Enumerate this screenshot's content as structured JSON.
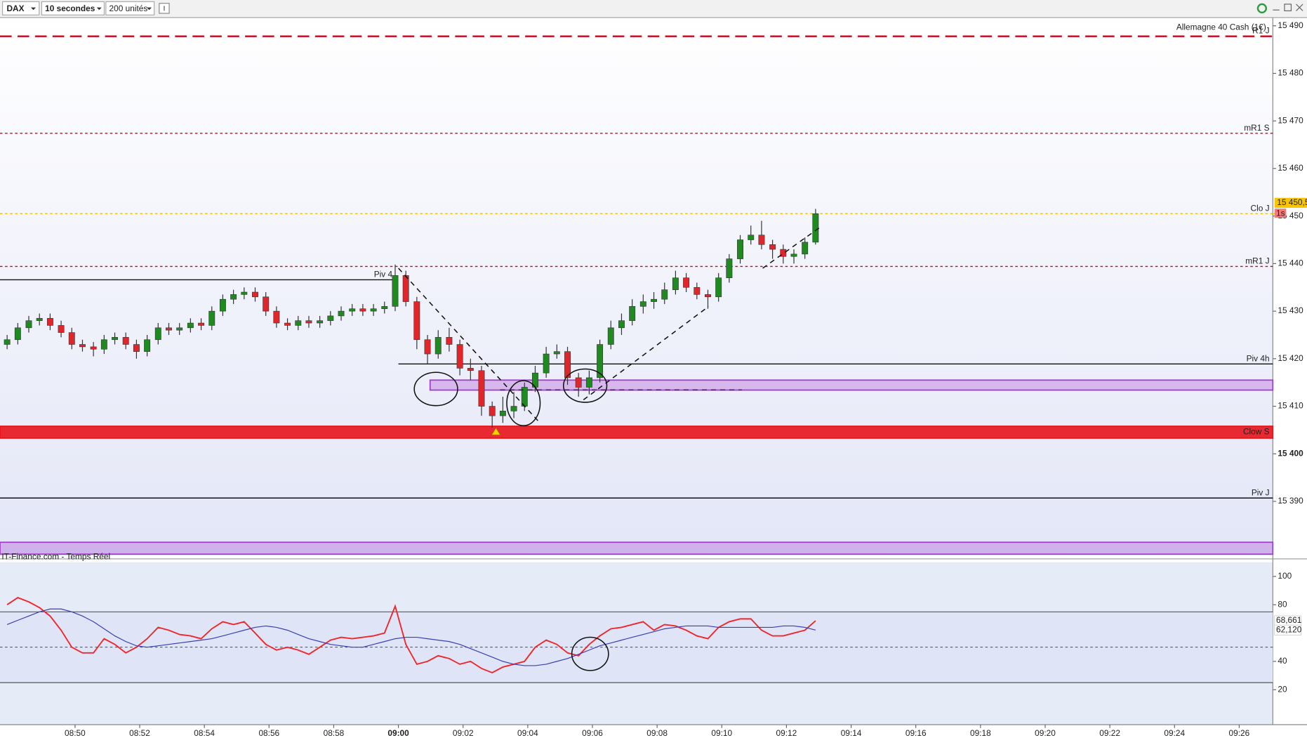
{
  "toolbar": {
    "symbol": "DAX",
    "interval": "10 secondes",
    "units": "200 unités"
  },
  "chart_data": [
    {
      "type": "candlestick",
      "title": "Allemagne 40 Cash (1€)",
      "xlim": [
        47.68,
        87.04
      ],
      "ylim": [
        15378.6,
        15491.75
      ],
      "yticks": [
        {
          "value": 15390,
          "label": "15 390"
        },
        {
          "value": 15400,
          "label": "15 400",
          "bold": true
        },
        {
          "value": 15410,
          "label": "15 410"
        },
        {
          "value": 15420,
          "label": "15 420"
        },
        {
          "value": 15430,
          "label": "15 430"
        },
        {
          "value": 15440,
          "label": "15 440"
        },
        {
          "value": 15450,
          "label": "15 450"
        },
        {
          "value": 15460,
          "label": "15 460"
        },
        {
          "value": 15470,
          "label": "15 470"
        },
        {
          "value": 15480,
          "label": "15 480"
        },
        {
          "value": 15490,
          "label": "15 490"
        }
      ],
      "up_color": "#1f8a1f",
      "down_color": "#e0262b",
      "x": [
        47.9,
        48.23,
        48.57,
        48.9,
        49.23,
        49.57,
        49.9,
        50.23,
        50.57,
        50.9,
        51.23,
        51.57,
        51.9,
        52.23,
        52.57,
        52.9,
        53.23,
        53.57,
        53.9,
        54.23,
        54.57,
        54.9,
        55.23,
        55.57,
        55.9,
        56.23,
        56.57,
        56.9,
        57.23,
        57.57,
        57.9,
        58.23,
        58.57,
        58.9,
        59.23,
        59.57,
        59.9,
        60.23,
        60.57,
        60.9,
        61.23,
        61.57,
        61.9,
        62.23,
        62.57,
        62.9,
        63.23,
        63.57,
        63.9,
        64.23,
        64.57,
        64.9,
        65.23,
        65.57,
        65.9,
        66.23,
        66.57,
        66.9,
        67.23,
        67.57,
        67.9,
        68.23,
        68.57,
        68.9,
        69.23,
        69.57,
        69.9,
        70.23,
        70.57,
        70.9,
        71.23,
        71.57,
        71.9,
        72.23,
        72.57,
        72.9
      ],
      "open": [
        15423,
        15424,
        15426.5,
        15428,
        15428.5,
        15427,
        15425.5,
        15423,
        15422.5,
        15422,
        15424,
        15424.5,
        15423,
        15421.5,
        15424,
        15426.5,
        15426,
        15426.5,
        15427.5,
        15427,
        15430,
        15432.5,
        15433.5,
        15434,
        15433,
        15430,
        15427.5,
        15427,
        15428,
        15427.5,
        15428,
        15429,
        15430,
        15430.5,
        15430,
        15430.5,
        15431,
        15437.5,
        15432,
        15424,
        15421,
        15424.5,
        15423,
        15418,
        15417.5,
        15410,
        15408,
        15409,
        15410,
        15414,
        15417,
        15421,
        15421.5,
        15416,
        15414,
        15416,
        15423,
        15426.5,
        15428,
        15431,
        15432,
        15432.5,
        15434.5,
        15437,
        15435,
        15433.5,
        15433,
        15437,
        15441,
        15445,
        15446,
        15444,
        15443,
        15441.5,
        15442,
        15444.5
      ],
      "high": [
        15425,
        15427.5,
        15429,
        15429.5,
        15429.5,
        15428,
        15426.5,
        15424,
        15423.5,
        15425,
        15425.5,
        15425.5,
        15424,
        15425,
        15427.5,
        15427.5,
        15427.5,
        15428.5,
        15428.5,
        15431,
        15433.5,
        15434.5,
        15435,
        15435,
        15434,
        15431,
        15428.5,
        15429,
        15429,
        15429,
        15430,
        15431,
        15431.5,
        15431.5,
        15431.5,
        15432,
        15439.8,
        15438.5,
        15433,
        15425,
        15426,
        15426.5,
        15424,
        15420,
        15418.5,
        15411,
        15412,
        15413,
        15415,
        15418.5,
        15422.5,
        15423,
        15422.5,
        15417,
        15417.5,
        15424,
        15428,
        15429.5,
        15432.5,
        15433.5,
        15434,
        15436,
        15438.5,
        15438,
        15436,
        15434.5,
        15438,
        15442,
        15446,
        15448,
        15449,
        15445,
        15444,
        15443,
        15445.5,
        15451.5
      ],
      "low": [
        15422,
        15423,
        15425.5,
        15427,
        15426,
        15424.5,
        15422,
        15421.5,
        15420.5,
        15421,
        15423,
        15422,
        15420,
        15420.5,
        15423,
        15425,
        15425,
        15425.5,
        15426,
        15426,
        15429,
        15431.5,
        15432.5,
        15432,
        15429,
        15426.5,
        15426,
        15426,
        15426.5,
        15426.5,
        15427,
        15428,
        15429,
        15429,
        15429,
        15429.5,
        15430,
        15431,
        15422,
        15419,
        15420,
        15421.5,
        15416.5,
        15415.5,
        15408,
        15405.5,
        15406.5,
        15407.5,
        15409,
        15413,
        15416,
        15420,
        15414.5,
        15412,
        15412.5,
        15415,
        15422,
        15425,
        15427,
        15429.5,
        15430.5,
        15431.5,
        15433.5,
        15434,
        15432.5,
        15430.5,
        15432,
        15436,
        15440,
        15444,
        15443,
        15441,
        15440,
        15440,
        15441,
        15444
      ],
      "close": [
        15424,
        15426.5,
        15428,
        15428.5,
        15427,
        15425.5,
        15423,
        15422.5,
        15422,
        15424,
        15424.5,
        15423,
        15421.5,
        15424,
        15426.5,
        15426,
        15426.5,
        15427.5,
        15427,
        15430,
        15432.5,
        15433.5,
        15434,
        15433,
        15430,
        15427.5,
        15427,
        15428,
        15427.5,
        15428,
        15429,
        15430,
        15430.5,
        15430,
        15430.5,
        15431,
        15437.5,
        15432,
        15424,
        15421,
        15424.5,
        15423,
        15418,
        15417.5,
        15410,
        15408,
        15409,
        15410,
        15414,
        15417,
        15421,
        15421.5,
        15416,
        15414,
        15416,
        15423,
        15426.5,
        15428,
        15431,
        15432,
        15432.5,
        15434.5,
        15437,
        15435,
        15433.5,
        15433,
        15437,
        15441,
        15445,
        15446,
        15444,
        15443,
        15441.5,
        15442,
        15444.5,
        15450.5
      ],
      "last_price_label": "15 450,5",
      "countdown": "1s",
      "levels": [
        {
          "label": "R1 J",
          "value": 15487.8,
          "color": "#d0021b",
          "style": "dashed"
        },
        {
          "label": "mR1 S",
          "value": 15467.4,
          "color": "#d0021b",
          "style": "dotted"
        },
        {
          "label": "Clo J",
          "value": 15450.5,
          "color": "#f0c000",
          "style": "dotted"
        },
        {
          "label": "mR1 J",
          "value": 15439.4,
          "color": "#d0021b",
          "style": "dotted"
        },
        {
          "label": "Piv 4",
          "value": 15436.6,
          "color": "#111111",
          "style": "solid",
          "x_to": 59.92
        },
        {
          "label": "Piv 4h",
          "value": 15418.9,
          "color": "#111111",
          "style": "solid",
          "x_from": 60
        },
        {
          "label": "Piv J",
          "value": 15390.7,
          "color": "#111111",
          "style": "solid"
        }
      ],
      "zones": [
        {
          "low": 15413.4,
          "high": 15415.5,
          "x_from": 60.98,
          "color": "#a43cd0",
          "opacity": 0.3
        },
        {
          "low": 15403.3,
          "high": 15405.8,
          "color": "#e8141b",
          "opacity": 0.9,
          "label": "Clow S"
        },
        {
          "low": 15378.9,
          "high": 15381.4,
          "color": "#a43cd0",
          "opacity": 0.3
        }
      ]
    },
    {
      "type": "line",
      "title": "IT-Finance.com - Temps Réel",
      "xlim": [
        47.68,
        87.04
      ],
      "ylim": [
        -4.7,
        110
      ],
      "yticks": [
        20,
        40,
        80,
        100
      ],
      "levels": [
        {
          "value": 75,
          "style": "solid",
          "color": "#333333"
        },
        {
          "value": 50,
          "style": "dotted",
          "color": "#333333"
        },
        {
          "value": 25,
          "style": "solid",
          "color": "#333333"
        }
      ],
      "xticks": [
        {
          "value": 50,
          "label": "08:50"
        },
        {
          "value": 52,
          "label": "08:52"
        },
        {
          "value": 54,
          "label": "08:54"
        },
        {
          "value": 56,
          "label": "08:56"
        },
        {
          "value": 58,
          "label": "08:58"
        },
        {
          "value": 60,
          "label": "09:00",
          "bold": true
        },
        {
          "value": 62,
          "label": "09:02"
        },
        {
          "value": 64,
          "label": "09:04"
        },
        {
          "value": 66,
          "label": "09:06"
        },
        {
          "value": 68,
          "label": "09:08"
        },
        {
          "value": 70,
          "label": "09:10"
        },
        {
          "value": 72,
          "label": "09:12"
        },
        {
          "value": 74,
          "label": "09:14"
        },
        {
          "value": 76,
          "label": "09:16"
        },
        {
          "value": 78,
          "label": "09:18"
        },
        {
          "value": 80,
          "label": "09:20"
        },
        {
          "value": 82,
          "label": "09:22"
        },
        {
          "value": 84,
          "label": "09:24"
        },
        {
          "value": 86,
          "label": "09:26"
        }
      ],
      "x": [
        47.9,
        48.23,
        48.57,
        48.9,
        49.23,
        49.57,
        49.9,
        50.23,
        50.57,
        50.9,
        51.23,
        51.57,
        51.9,
        52.23,
        52.57,
        52.9,
        53.23,
        53.57,
        53.9,
        54.23,
        54.57,
        54.9,
        55.23,
        55.57,
        55.9,
        56.23,
        56.57,
        56.9,
        57.23,
        57.57,
        57.9,
        58.23,
        58.57,
        58.9,
        59.23,
        59.57,
        59.9,
        60.23,
        60.57,
        60.9,
        61.23,
        61.57,
        61.9,
        62.23,
        62.57,
        62.9,
        63.23,
        63.57,
        63.9,
        64.23,
        64.57,
        64.9,
        65.23,
        65.57,
        65.9,
        66.23,
        66.57,
        66.9,
        67.23,
        67.57,
        67.9,
        68.23,
        68.57,
        68.9,
        69.23,
        69.57,
        69.9,
        70.23,
        70.57,
        70.9,
        71.23,
        71.57,
        71.9,
        72.23,
        72.57,
        72.9
      ],
      "series": [
        {
          "color": "#f0262b",
          "last_label": "68,661",
          "values": [
            80,
            85,
            82,
            78,
            72,
            62,
            50,
            46,
            46,
            56,
            52,
            46,
            50,
            56,
            64,
            62,
            59,
            58,
            56,
            63,
            68,
            66,
            68,
            60,
            52,
            48,
            50,
            48,
            45,
            50,
            55,
            57,
            56,
            57,
            58,
            60,
            79,
            52,
            38,
            40,
            44,
            42,
            38,
            40,
            35,
            32,
            36,
            38,
            40,
            50,
            55,
            52,
            46,
            44,
            52,
            58,
            63,
            64,
            66,
            68,
            62,
            66,
            65,
            62,
            58,
            56,
            64,
            68,
            70,
            70,
            62,
            58,
            58,
            60,
            62,
            68.661
          ]
        },
        {
          "color": "#3a3fb0",
          "last_label": "62,120",
          "values": [
            66,
            69,
            72,
            75,
            77,
            77,
            75,
            72,
            68,
            63,
            58,
            54,
            51,
            50,
            51,
            52,
            53,
            54,
            55,
            56,
            58,
            60,
            62,
            64,
            65,
            64,
            62,
            59,
            56,
            54,
            52,
            51,
            50,
            50,
            52,
            54,
            56,
            57,
            57,
            56,
            55,
            54,
            52,
            49,
            46,
            43,
            40,
            38,
            37,
            37,
            38,
            40,
            42,
            45,
            48,
            51,
            53,
            55,
            57,
            59,
            61,
            63,
            64,
            65,
            65,
            65,
            64,
            64,
            64,
            64,
            64,
            64,
            65,
            65,
            64,
            62.12
          ]
        }
      ]
    }
  ]
}
